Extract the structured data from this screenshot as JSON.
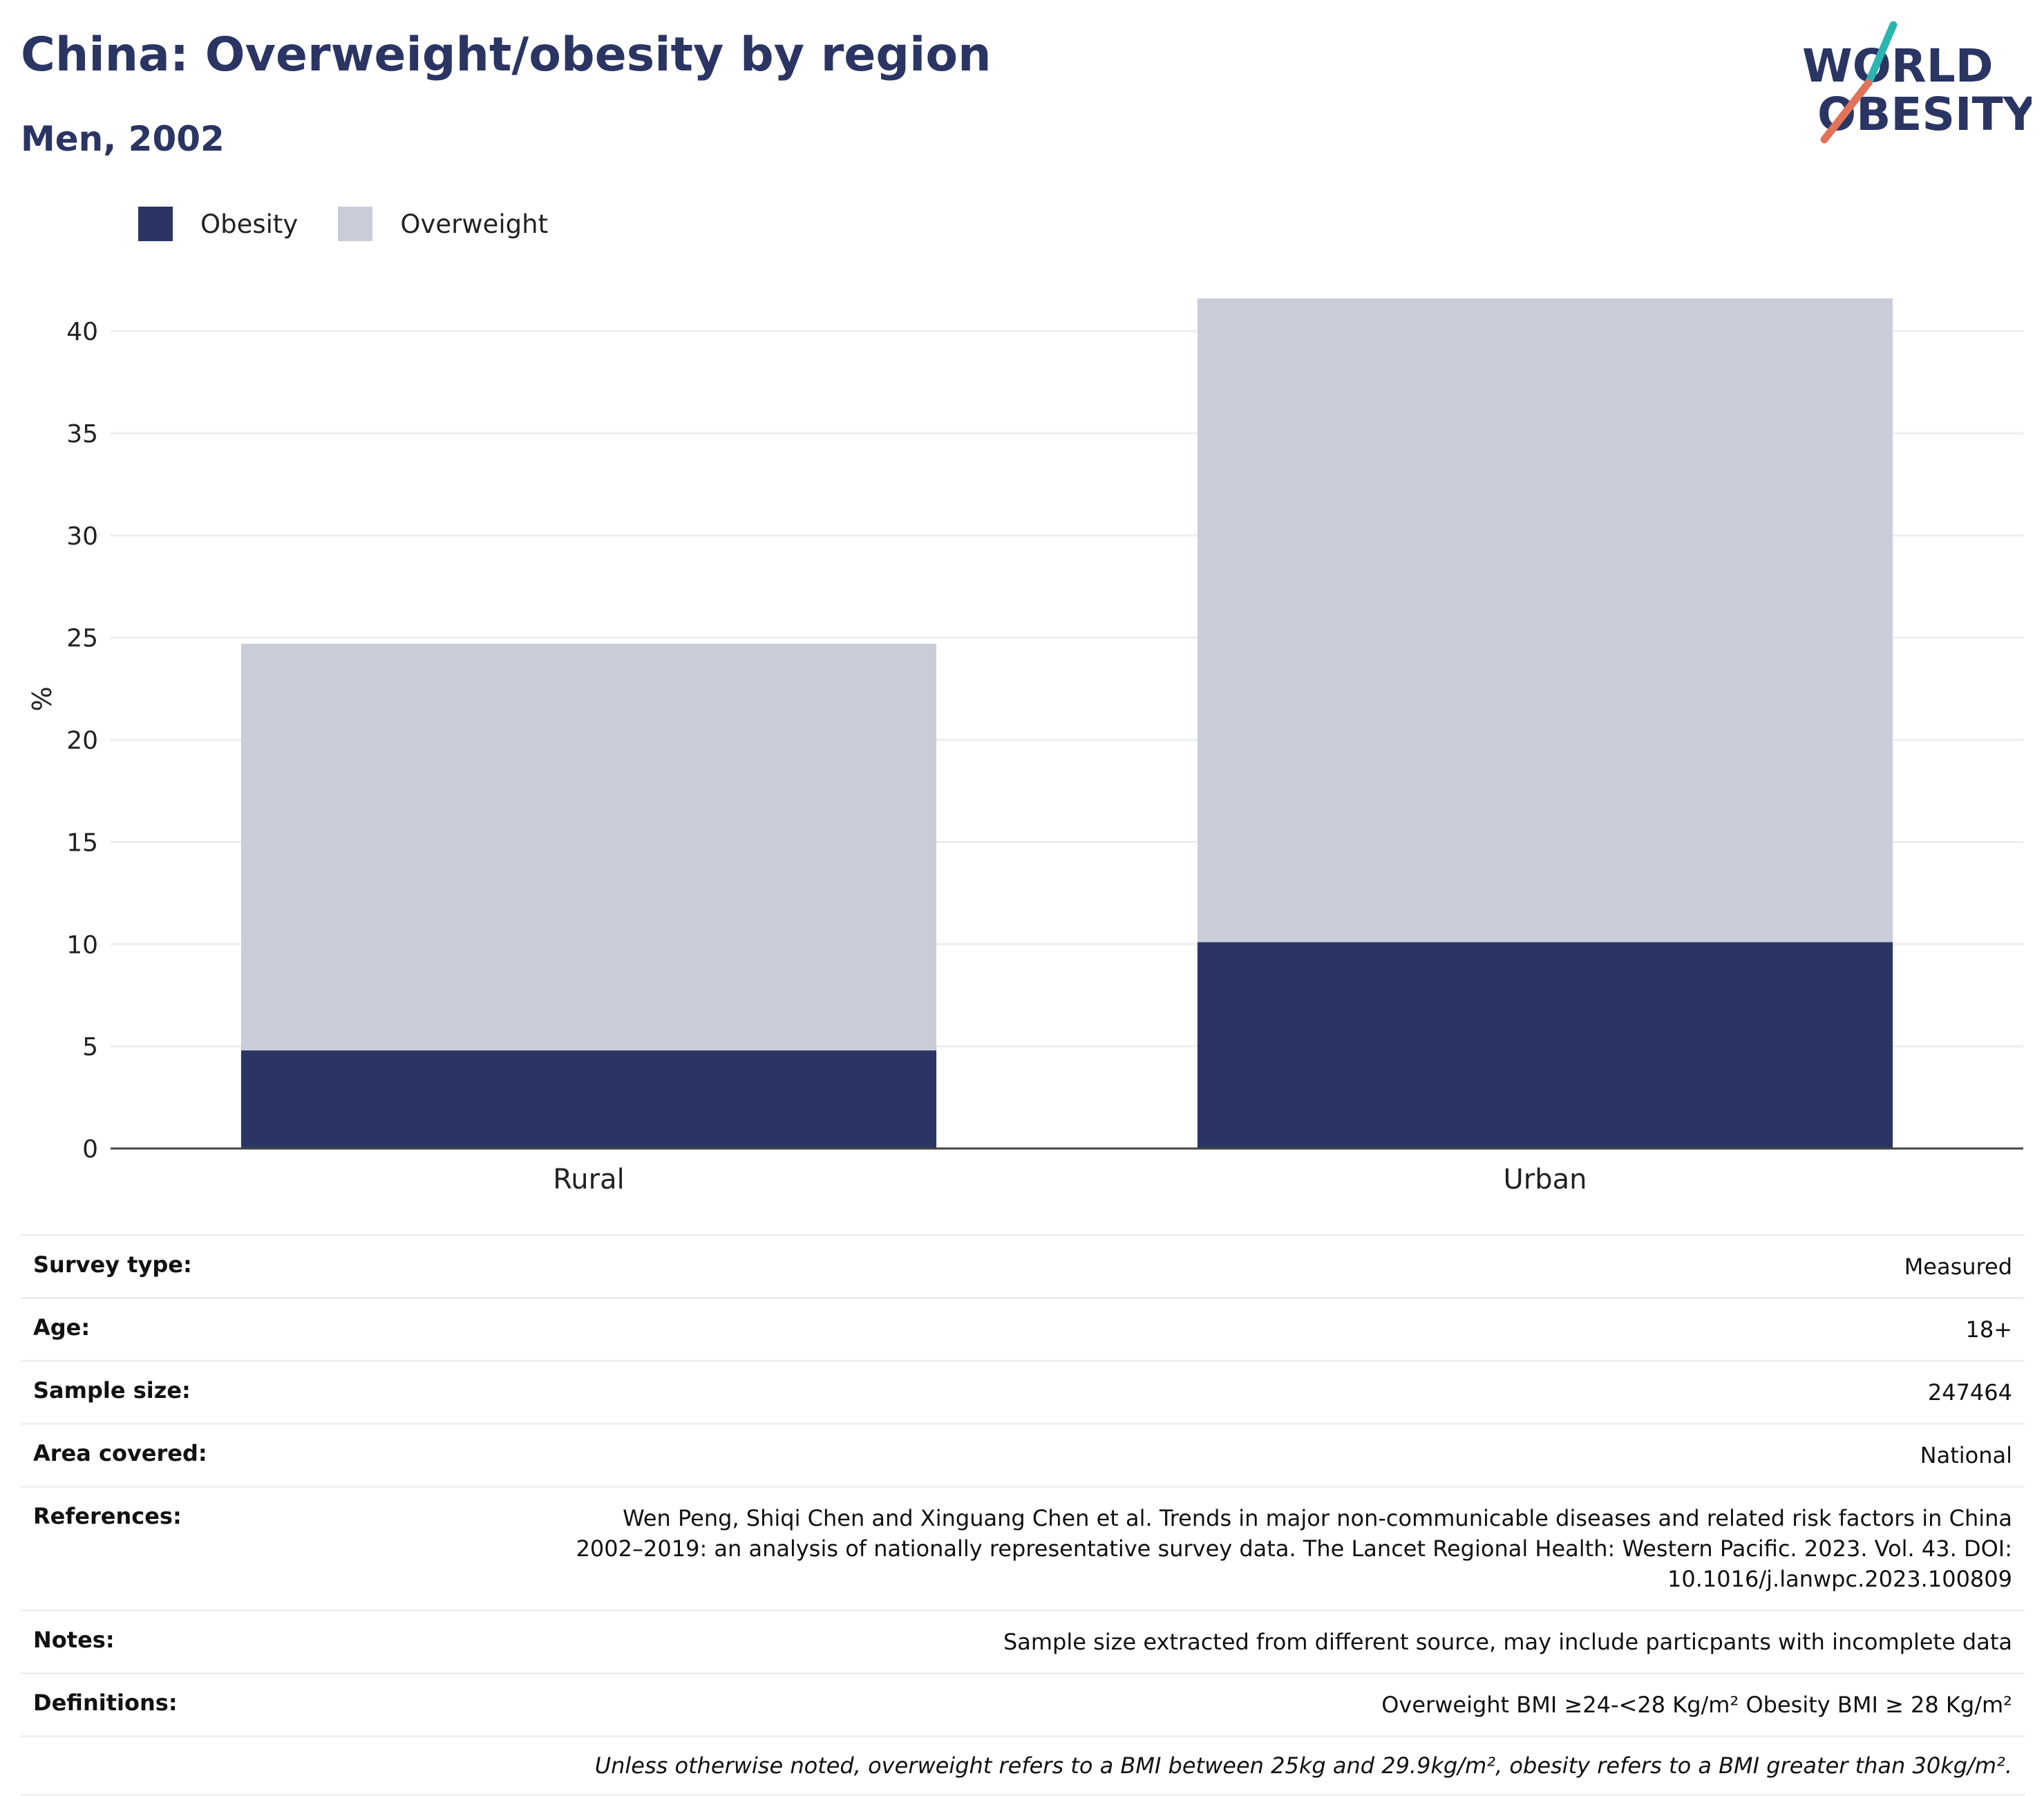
{
  "header": {
    "title": "China: Overweight/obesity by region",
    "subtitle": "Men, 2002",
    "logo_line1": "WORLD",
    "logo_line2": "OBESITY"
  },
  "legend": {
    "items": [
      {
        "label": "Obesity",
        "color": "#2a3563"
      },
      {
        "label": "Overweight",
        "color": "#cacdd9"
      }
    ]
  },
  "chart_data": {
    "type": "bar",
    "stacked": true,
    "categories": [
      "Rural",
      "Urban"
    ],
    "series": [
      {
        "name": "Obesity",
        "values": [
          4.8,
          10.1
        ],
        "color": "#2a3563"
      },
      {
        "name": "Overweight",
        "values": [
          19.9,
          31.5
        ],
        "color": "#cacdd9"
      }
    ],
    "ylabel": "%",
    "ylim": [
      0,
      42
    ],
    "yticks": [
      0,
      5,
      10,
      15,
      20,
      25,
      30,
      35,
      40
    ],
    "grid": true,
    "legend_position": "top-left"
  },
  "meta": {
    "rows": [
      {
        "label": "Survey type:",
        "value": "Measured"
      },
      {
        "label": "Age:",
        "value": "18+"
      },
      {
        "label": "Sample size:",
        "value": "247464"
      },
      {
        "label": "Area covered:",
        "value": "National"
      },
      {
        "label": "References:",
        "value": "Wen Peng, Shiqi Chen and Xinguang Chen et al. Trends in major non-communicable diseases and related risk factors in China 2002–2019: an analysis of nationally representative survey data. The Lancet Regional Health: Western Pacific. 2023. Vol. 43. DOI: 10.1016/j.lanwpc.2023.100809"
      },
      {
        "label": "Notes:",
        "value": "Sample size extracted from different source, may include particpants with incomplete data"
      },
      {
        "label": "Definitions:",
        "value": "Overweight BMI ≥24-<28 Kg/m² Obesity BMI ≥ 28 Kg/m²"
      }
    ],
    "footnote": "Unless otherwise noted, overweight refers to a BMI between 25kg and 29.9kg/m², obesity refers to a BMI greater than 30kg/m²."
  }
}
